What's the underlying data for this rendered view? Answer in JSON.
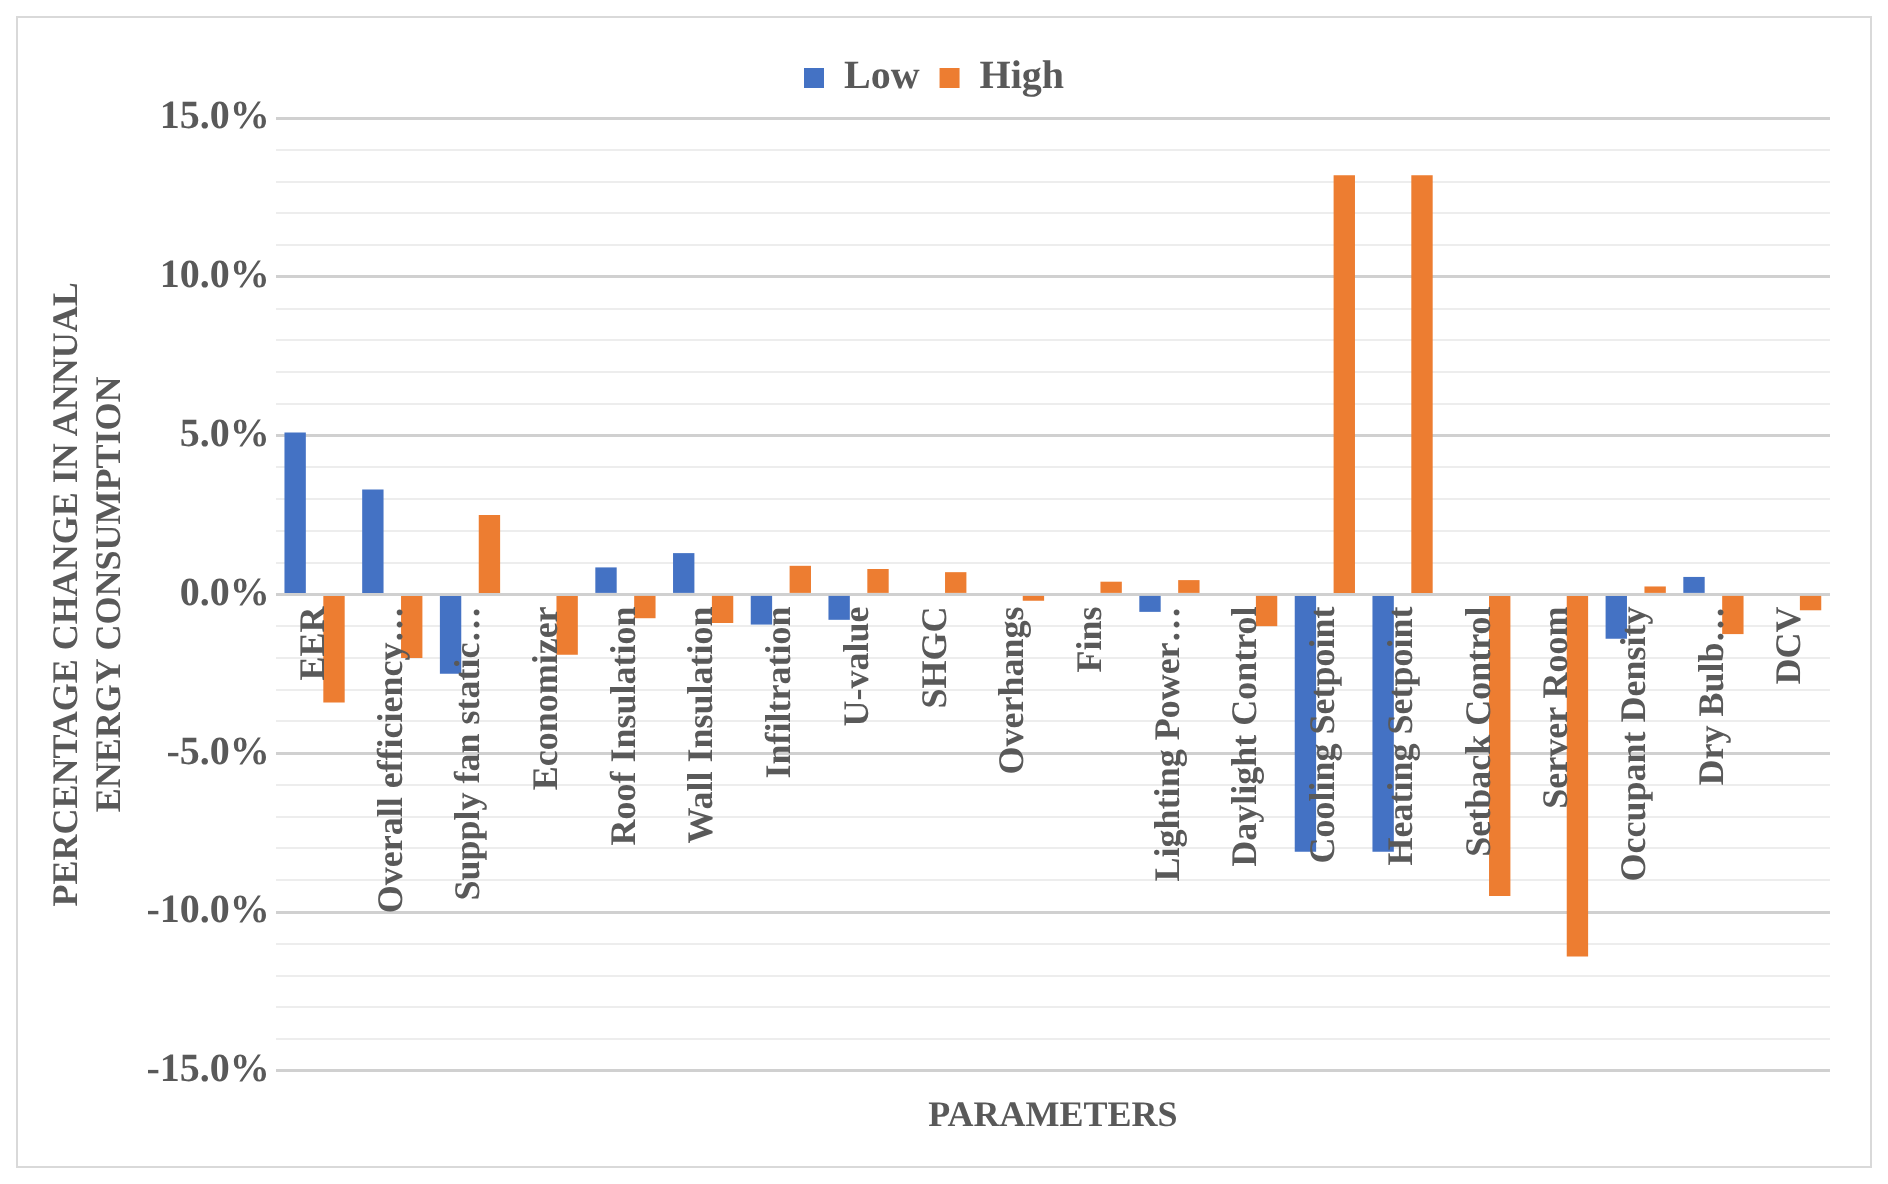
{
  "chart_data": {
    "type": "bar",
    "xlabel": "PARAMETERS",
    "ylabel": "PERCENTAGE CHANGE IN ANNUAL ENERGY CONSUMPTION",
    "categories": [
      "EER",
      "Overall efficiency…",
      "Supply fan static…",
      "Economizer",
      "Roof Insulation",
      "Wall Insulation",
      "Infiltration",
      "U-value",
      "SHGC",
      "Overhangs",
      "Fins",
      "Lighting Power…",
      "Daylight Control",
      "Cooling Setpoint",
      "Heating Setpoint",
      "Setback Control",
      "Server Room",
      "Occupant Density",
      "Dry Bulb…",
      "DCV"
    ],
    "series": [
      {
        "name": "Low",
        "color": "#4472c4",
        "values": [
          5.1,
          3.3,
          -2.5,
          0,
          0.85,
          1.3,
          -0.95,
          -0.8,
          0,
          0,
          0,
          -0.55,
          0,
          -8.1,
          -8.1,
          0,
          0,
          -1.4,
          0.55,
          0
        ]
      },
      {
        "name": "High",
        "color": "#ed7d31",
        "values": [
          -3.4,
          -2.0,
          2.5,
          -1.9,
          -0.75,
          -0.9,
          0.9,
          0.8,
          0.7,
          -0.2,
          0.4,
          0.45,
          -1.0,
          13.2,
          13.2,
          -9.5,
          -11.4,
          0.25,
          -1.25,
          -0.5
        ]
      }
    ],
    "ylim": [
      -15,
      15
    ],
    "yticks": [
      {
        "value": -15,
        "label": "-15.0%"
      },
      {
        "value": -14,
        "label": null
      },
      {
        "value": -13,
        "label": null
      },
      {
        "value": -12,
        "label": null
      },
      {
        "value": -11,
        "label": null
      },
      {
        "value": -10,
        "label": "-10.0%"
      },
      {
        "value": -9,
        "label": null
      },
      {
        "value": -8,
        "label": null
      },
      {
        "value": -7,
        "label": null
      },
      {
        "value": -6,
        "label": null
      },
      {
        "value": -5,
        "label": "-5.0%"
      },
      {
        "value": -4,
        "label": null
      },
      {
        "value": -3,
        "label": null
      },
      {
        "value": -2,
        "label": null
      },
      {
        "value": -1,
        "label": null
      },
      {
        "value": 0,
        "label": "0.0%"
      },
      {
        "value": 1,
        "label": null
      },
      {
        "value": 2,
        "label": null
      },
      {
        "value": 3,
        "label": null
      },
      {
        "value": 4,
        "label": null
      },
      {
        "value": 5,
        "label": "5.0%"
      },
      {
        "value": 6,
        "label": null
      },
      {
        "value": 7,
        "label": null
      },
      {
        "value": 8,
        "label": null
      },
      {
        "value": 9,
        "label": null
      },
      {
        "value": 10,
        "label": "10.0%"
      },
      {
        "value": 11,
        "label": null
      },
      {
        "value": 12,
        "label": null
      },
      {
        "value": 13,
        "label": null
      },
      {
        "value": 14,
        "label": null
      },
      {
        "value": 15,
        "label": "15.0%"
      }
    ],
    "grid": "y",
    "legend": "top"
  }
}
